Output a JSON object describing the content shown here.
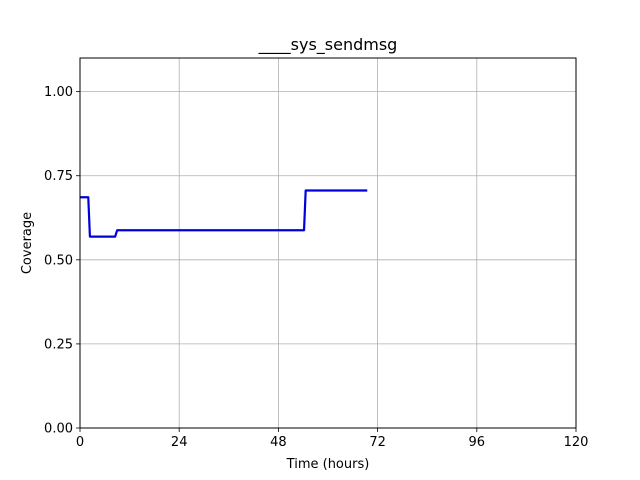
{
  "chart_data": {
    "type": "line",
    "title": "____sys_sendmsg",
    "xlabel": "Time (hours)",
    "ylabel": "Coverage",
    "xlim": [
      0,
      120
    ],
    "ylim": [
      0,
      1.1
    ],
    "xticks": [
      0,
      24,
      48,
      72,
      96,
      120
    ],
    "yticks": [
      0.0,
      0.25,
      0.5,
      0.75,
      1.0
    ],
    "xtick_labels": [
      "0",
      "24",
      "48",
      "72",
      "96",
      "120"
    ],
    "ytick_labels": [
      "0.00",
      "0.25",
      "0.50",
      "0.75",
      "1.00"
    ],
    "grid": true,
    "series": [
      {
        "color": "#0000dd",
        "x": [
          0,
          2,
          2.4,
          8.5,
          9.0,
          54.2,
          54.6,
          69.5
        ],
        "y": [
          0.686,
          0.686,
          0.569,
          0.569,
          0.588,
          0.588,
          0.706,
          0.706
        ]
      }
    ]
  }
}
